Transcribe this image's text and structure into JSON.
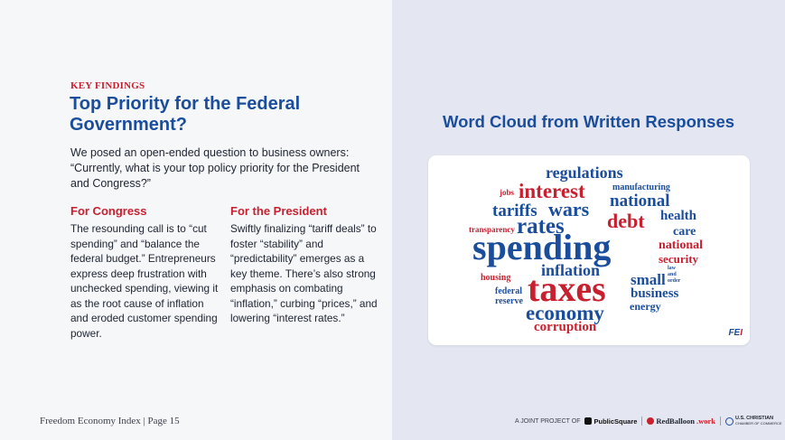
{
  "left": {
    "kicker": "KEY FINDINGS",
    "title": "Top Priority for the Federal Government?",
    "intro": "We posed an open-ended question to business owners: “Currently, what is your top policy priority for the President and Congress?”",
    "congress": {
      "heading": "For Congress",
      "body": "The resounding call is to “cut spending” and “balance the federal budget.” Entrepreneurs express deep frustration with unchecked spending, viewing it as the root cause of inflation and eroded customer spending power."
    },
    "president": {
      "heading": "For the President",
      "body": "Swiftly finalizing “tariff deals” to foster “stability” and “predictability” emerges as a key theme. There’s also strong emphasis on combating “inflation,” curbing “prices,” and lowering “interest rates.”"
    }
  },
  "footer": {
    "page_label": "Freedom Economy Index | Page 15",
    "joint_label": "A JOINT PROJECT OF",
    "publicsquare": "PublicSquare",
    "redballoon_a": "RedBalloon",
    "redballoon_b": ".work",
    "uscc_line1": "U.S. CHRISTIAN",
    "uscc_line2": "CHAMBER OF COMMERCE"
  },
  "cloud": {
    "title": "Word Cloud from Written Responses",
    "words": {
      "regulations": "regulations",
      "jobs": "jobs",
      "interest": "interest",
      "manufacturing": "manufacturing",
      "tariffs": "tariffs",
      "wars": "wars",
      "national1": "national",
      "health": "health",
      "transparency": "transparency",
      "rates": "rates",
      "debt": "debt",
      "care": "care",
      "spending": "spending",
      "national2": "national",
      "security": "security",
      "inflation": "inflation",
      "law": "law",
      "and": "and",
      "order": "order",
      "housing": "housing",
      "small": "small",
      "federal": "federal",
      "reserve": "reserve",
      "taxes": "taxes",
      "business": "business",
      "energy": "energy",
      "economy": "economy",
      "corruption": "corruption"
    },
    "fei_a": "FE",
    "fei_b": "I"
  },
  "colors": {
    "blue": "#1a4d9c",
    "red": "#c8202f"
  }
}
